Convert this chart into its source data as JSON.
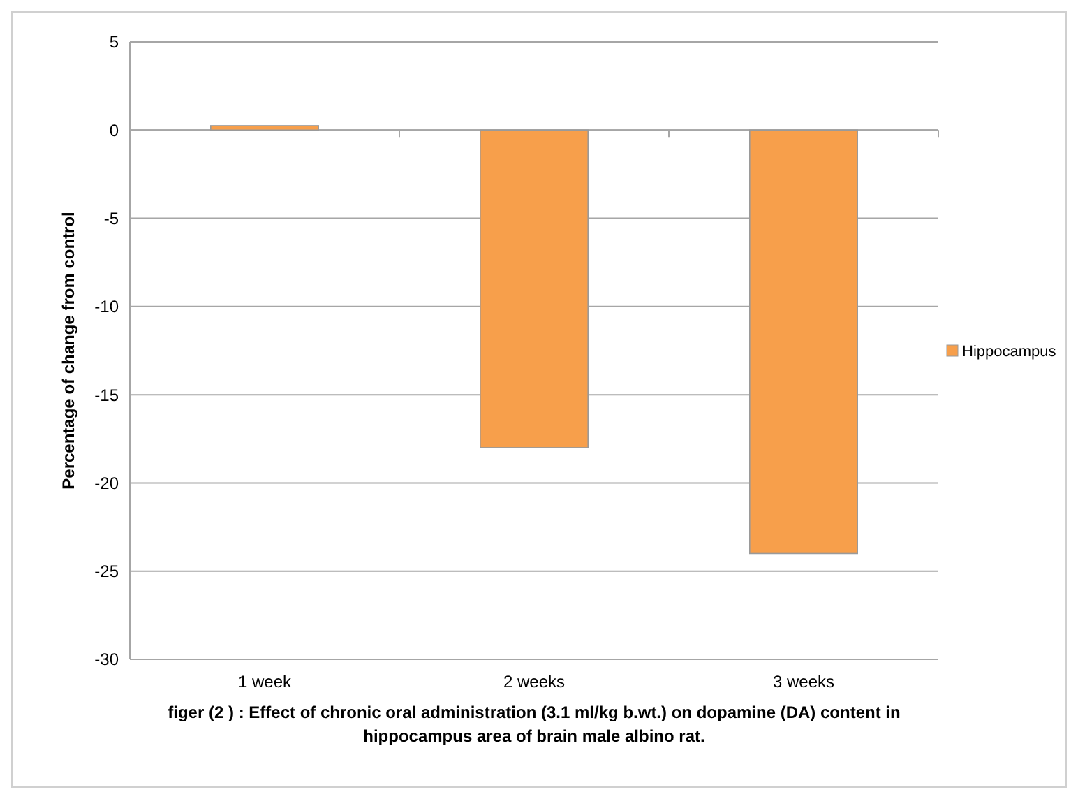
{
  "chart_data": {
    "type": "bar",
    "categories": [
      "1 week",
      "2 weeks",
      "3 weeks"
    ],
    "series": [
      {
        "name": "Hippocampus",
        "color": "#f79f4b",
        "values": [
          0.25,
          -18,
          -24
        ]
      }
    ],
    "ylabel": "Percentage of change from control",
    "ylim": [
      -30,
      5
    ],
    "yticks": [
      -30,
      -25,
      -20,
      -15,
      -10,
      -5,
      0,
      5
    ],
    "grid": "y",
    "legend": "right",
    "annotations": [
      "figer (2 ) : Effect of chronic oral administration (3.1 ml/kg b.wt.) on dopamine (DA) content in hippocampus area of  brain male albino rat."
    ]
  }
}
